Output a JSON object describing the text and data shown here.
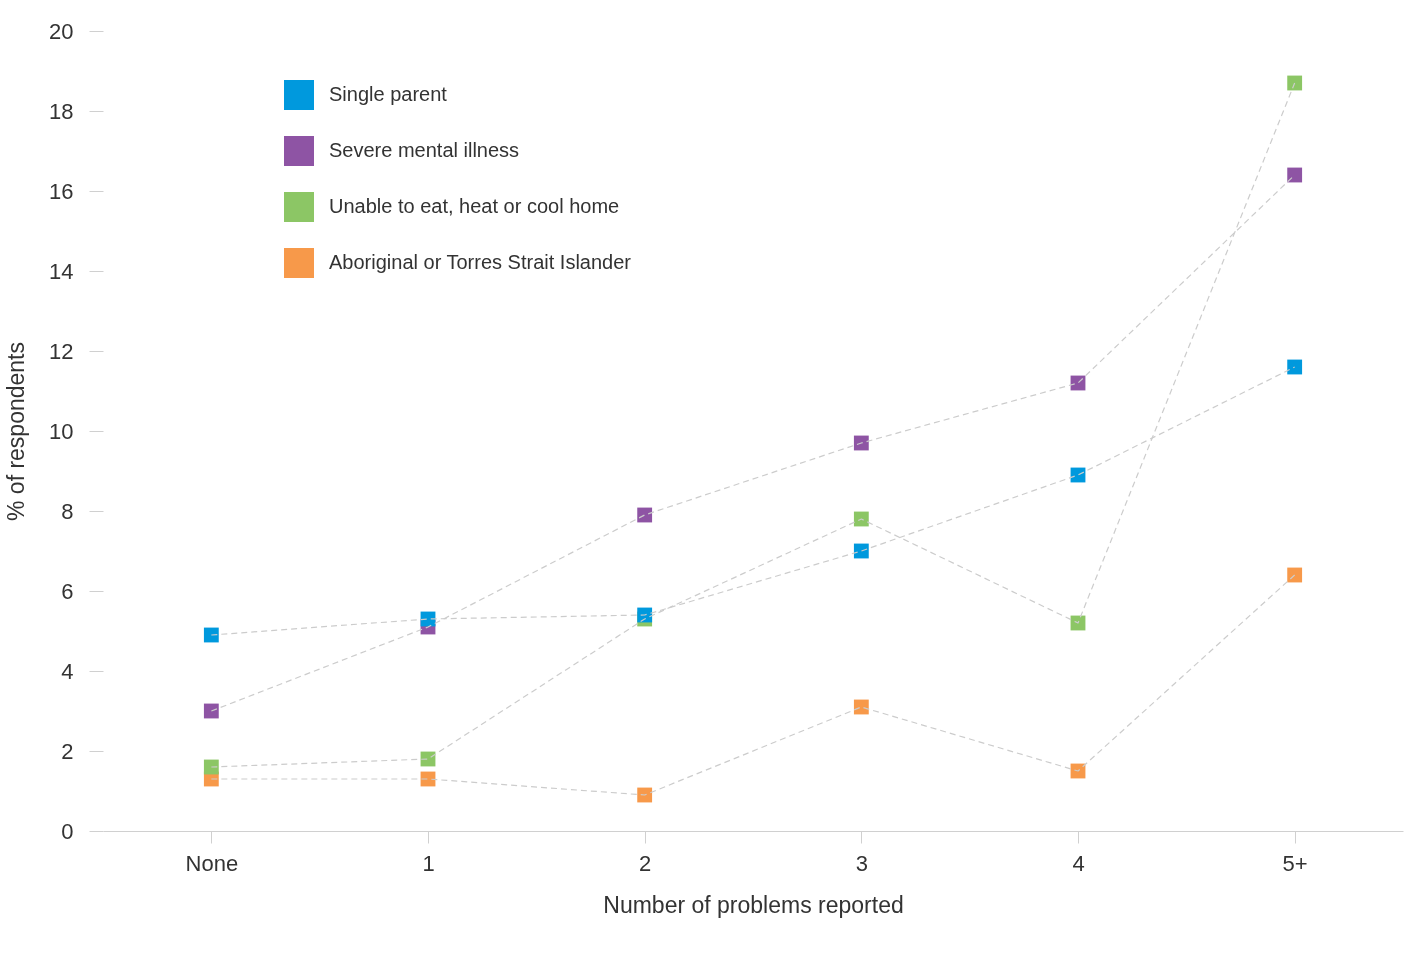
{
  "chart_data": {
    "type": "line",
    "xlabel": "Number of problems reported",
    "ylabel": "% of respondents",
    "categories": [
      "None",
      "1",
      "2",
      "3",
      "4",
      "5+"
    ],
    "series": [
      {
        "name": "Single parent",
        "color": "#0099dd",
        "values": [
          4.9,
          5.3,
          5.4,
          7.0,
          8.9,
          11.6
        ]
      },
      {
        "name": "Severe mental illness",
        "color": "#8e54a4",
        "values": [
          3.0,
          5.1,
          7.9,
          9.7,
          11.2,
          16.4
        ]
      },
      {
        "name": "Unable to eat, heat or cool home",
        "color": "#8cc665",
        "values": [
          1.6,
          1.8,
          5.3,
          7.8,
          5.2,
          18.7
        ]
      },
      {
        "name": "Aboriginal or Torres Strait Islander",
        "color": "#f7994a",
        "values": [
          1.3,
          1.3,
          0.9,
          3.1,
          1.5,
          6.4
        ]
      }
    ],
    "ylim": [
      0,
      20
    ],
    "yticks": [
      0,
      2,
      4,
      6,
      8,
      10,
      12,
      14,
      16,
      18,
      20
    ],
    "grid": false,
    "legend": "top left",
    "marker": "square",
    "line_style": "dashed"
  }
}
